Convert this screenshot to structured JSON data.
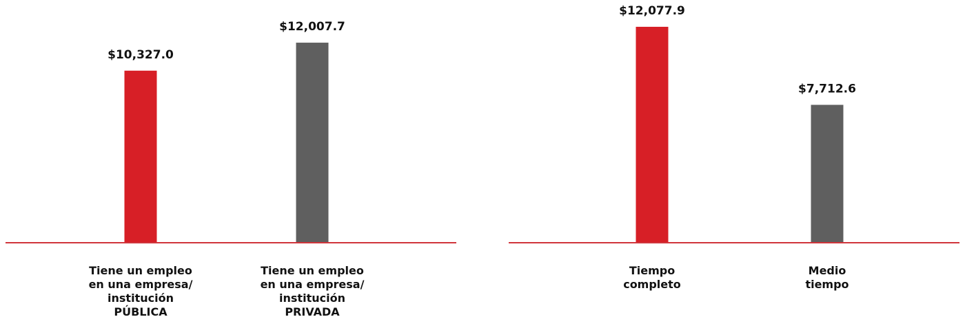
{
  "chart_data": [
    {
      "type": "bar",
      "categories": [
        "Tiene un empleo\nen una empresa/\ninstitución\nPÚBLICA",
        "Tiene un empleo\nen una empresa/\ninstitución\nPRIVADA"
      ],
      "values": [
        10327.0,
        12007.7
      ],
      "value_labels": [
        "$10,327.0",
        "$12,007.7"
      ],
      "colors": [
        "#d71f26",
        "#5f5f5f"
      ],
      "ylim": [
        0,
        13000
      ]
    },
    {
      "type": "bar",
      "categories": [
        "Tiempo\ncompleto",
        "Medio\ntiempo"
      ],
      "values": [
        12077.9,
        7712.6
      ],
      "value_labels": [
        "$12,077.9",
        "$7,712.6"
      ],
      "colors": [
        "#d71f26",
        "#5f5f5f"
      ],
      "ylim": [
        0,
        12500
      ]
    }
  ]
}
